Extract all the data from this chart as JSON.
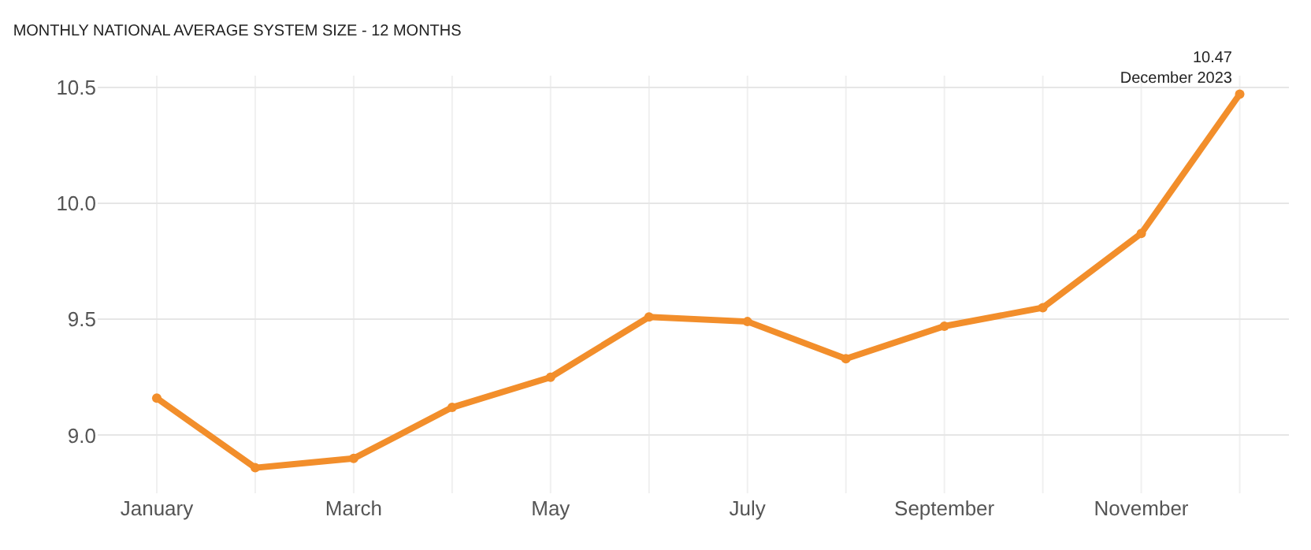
{
  "chart_data": {
    "type": "line",
    "title": "MONTHLY NATIONAL AVERAGE SYSTEM SIZE - 12 MONTHS",
    "categories": [
      "January",
      null,
      "March",
      null,
      "May",
      null,
      "July",
      null,
      "September",
      null,
      "November",
      null
    ],
    "series": [
      {
        "color": "#f28e2b",
        "values": [
          9.16,
          8.86,
          8.9,
          9.12,
          9.25,
          9.51,
          9.49,
          9.33,
          9.47,
          9.55,
          9.87,
          10.47
        ],
        "value_labels": [
          null,
          null,
          null,
          null,
          null,
          null,
          null,
          null,
          null,
          null,
          null,
          "10.47\nDecember 2023"
        ]
      }
    ],
    "ylim": [
      8.75,
      10.55
    ],
    "yticks": [
      {
        "value": 9,
        "label": "9.0"
      },
      {
        "value": 9.5,
        "label": "9.5"
      },
      {
        "value": 10,
        "label": "10.0"
      },
      {
        "value": 10.5,
        "label": "10.5"
      }
    ],
    "grid": true,
    "legend": false,
    "marker": "circle",
    "line_style": "solid"
  }
}
